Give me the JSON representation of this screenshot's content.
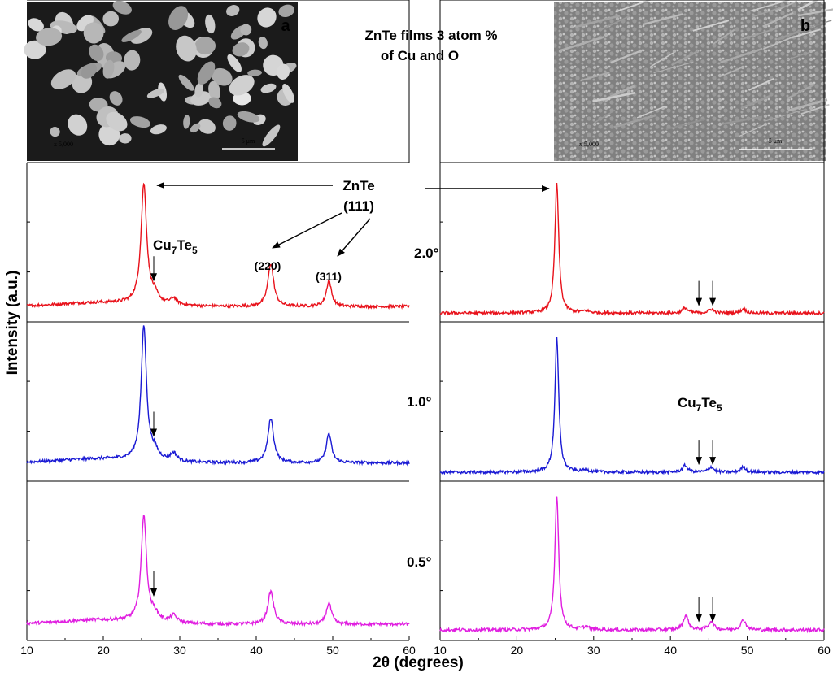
{
  "figure": {
    "title_line1": "ZnTe films 3 atom %",
    "title_line2": "of Cu and O",
    "ylabel": "Intensity (a.u.)",
    "xlabel": "2θ (degrees)",
    "annotations": {
      "znte": "ZnTe",
      "plane_111": "(111)",
      "plane_220": "(220)",
      "plane_311": "(311)",
      "cu7te5_base": "Cu",
      "cu7te5_sub1": "7",
      "cu7te5_mid": "Te",
      "cu7te5_sub2": "5"
    }
  },
  "micrographs": [
    {
      "label": "a",
      "magnification": "x 5,000",
      "scalebar": "5 μm",
      "description_colors": {
        "background": "#1a1a1a",
        "grain": "#bdbdbd"
      }
    },
    {
      "label": "b",
      "magnification": "x 5,000",
      "scalebar": "5 μm",
      "description_colors": {
        "background": "#7a7a7a",
        "grain": "#b0b0b0"
      }
    }
  ],
  "chart_data": [
    {
      "type": "line",
      "panel": "left",
      "xlim": [
        10,
        60
      ],
      "xticks": [
        10,
        20,
        30,
        40,
        50,
        60
      ],
      "xlabel": "2θ (degrees)",
      "ylabel": "Intensity (a.u.)",
      "grid": false,
      "series": [
        {
          "name": "2.0°",
          "color": "#e8121b",
          "baseline": 0.08,
          "peaks": [
            [
              25.3,
              0.92,
              0.45
            ],
            [
              29.2,
              0.05,
              0.5
            ],
            [
              41.9,
              0.33,
              0.45
            ],
            [
              49.5,
              0.2,
              0.4
            ],
            [
              26.7,
              0.06,
              0.6
            ]
          ],
          "cu7te5_arrows": [
            26.6
          ]
        },
        {
          "name": "1.0°",
          "color": "#1a1ad4",
          "baseline": 0.1,
          "peaks": [
            [
              25.3,
              1.0,
              0.42
            ],
            [
              29.2,
              0.06,
              0.5
            ],
            [
              41.9,
              0.33,
              0.45
            ],
            [
              49.5,
              0.22,
              0.4
            ],
            [
              26.7,
              0.06,
              0.6
            ]
          ],
          "cu7te5_arrows": [
            26.6
          ]
        },
        {
          "name": "0.5°",
          "color": "#e01ee0",
          "baseline": 0.08,
          "peaks": [
            [
              25.3,
              0.75,
              0.42
            ],
            [
              29.2,
              0.05,
              0.5
            ],
            [
              41.9,
              0.23,
              0.45
            ],
            [
              49.5,
              0.15,
              0.4
            ],
            [
              26.7,
              0.05,
              0.6
            ]
          ],
          "cu7te5_arrows": [
            26.6
          ]
        }
      ]
    },
    {
      "type": "line",
      "panel": "right",
      "xlim": [
        10,
        60
      ],
      "xticks": [
        10,
        20,
        30,
        40,
        50,
        60
      ],
      "xlabel": "2θ (degrees)",
      "grid": false,
      "series": [
        {
          "name": "2.0°",
          "color": "#e8121b",
          "baseline": 0.03,
          "peaks": [
            [
              25.2,
              1.0,
              0.3
            ],
            [
              29.0,
              0.015,
              0.5
            ],
            [
              41.9,
              0.04,
              0.4
            ],
            [
              45.3,
              0.03,
              0.4
            ],
            [
              49.5,
              0.03,
              0.4
            ]
          ],
          "cu7te5_arrows": [
            43.7,
            45.5
          ]
        },
        {
          "name": "1.0°",
          "color": "#1a1ad4",
          "baseline": 0.03,
          "peaks": [
            [
              25.2,
              1.0,
              0.3
            ],
            [
              29.0,
              0.015,
              0.5
            ],
            [
              41.9,
              0.05,
              0.4
            ],
            [
              45.3,
              0.04,
              0.4
            ],
            [
              49.5,
              0.04,
              0.4
            ]
          ],
          "cu7te5_arrows": [
            43.7,
            45.5
          ]
        },
        {
          "name": "0.5°",
          "color": "#e01ee0",
          "baseline": 0.04,
          "peaks": [
            [
              25.2,
              0.95,
              0.3
            ],
            [
              29.0,
              0.02,
              0.5
            ],
            [
              42.0,
              0.1,
              0.4
            ],
            [
              45.3,
              0.06,
              0.4
            ],
            [
              49.5,
              0.07,
              0.4
            ]
          ],
          "cu7te5_arrows": [
            43.7,
            45.5
          ]
        }
      ]
    }
  ]
}
